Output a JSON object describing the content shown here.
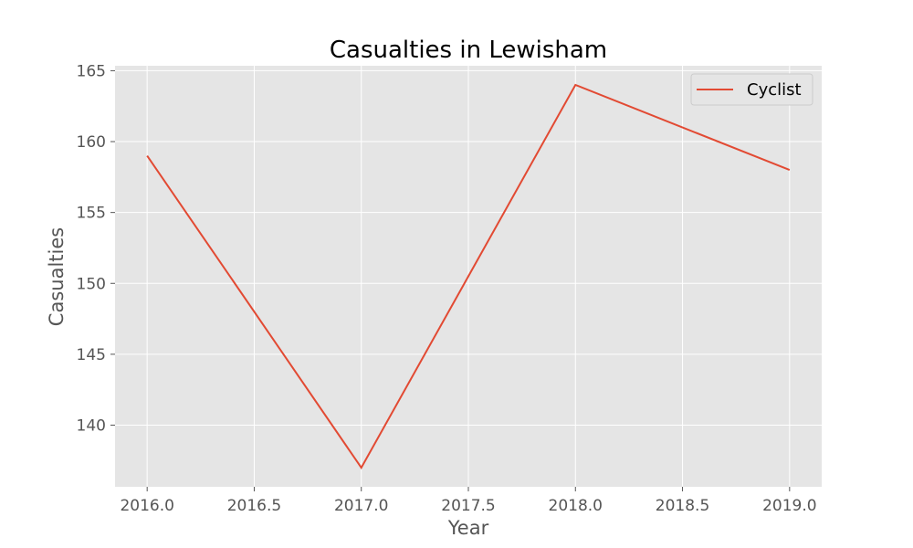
{
  "chart_data": {
    "type": "line",
    "title": "Casualties in Lewisham",
    "xlabel": "Year",
    "ylabel": "Casualties",
    "x": [
      2016,
      2017,
      2018,
      2019
    ],
    "series": [
      {
        "name": "Cyclist",
        "values": [
          159,
          137,
          164,
          158
        ],
        "color": "#e24a33"
      }
    ],
    "xlim": [
      2015.85,
      2019.15
    ],
    "ylim": [
      135.65,
      165.35
    ],
    "xticks": [
      2016.0,
      2016.5,
      2017.0,
      2017.5,
      2018.0,
      2018.5,
      2019.0
    ],
    "xtick_labels": [
      "2016.0",
      "2016.5",
      "2017.0",
      "2017.5",
      "2018.0",
      "2018.5",
      "2019.0"
    ],
    "yticks": [
      140,
      145,
      150,
      155,
      160,
      165
    ],
    "ytick_labels": [
      "140",
      "145",
      "150",
      "155",
      "160",
      "165"
    ],
    "grid": true,
    "legend_position": "top-right",
    "plot_background": "#e5e5e5",
    "grid_color": "#ffffff"
  }
}
